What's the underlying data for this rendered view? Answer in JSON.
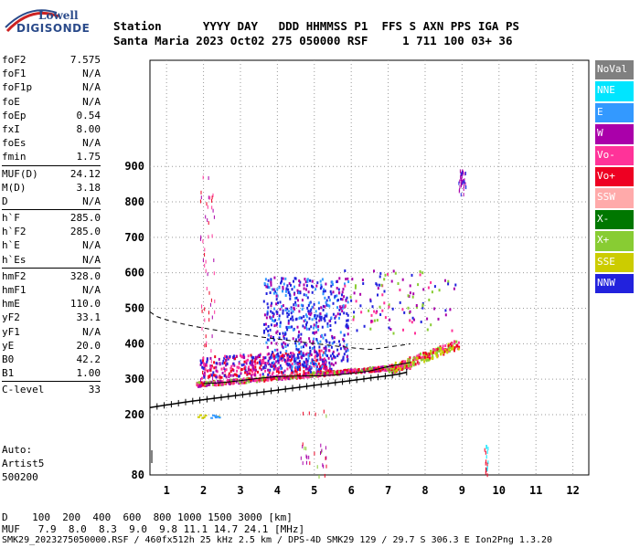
{
  "logo": {
    "line1": "Lowell",
    "line2": "DIGISONDE"
  },
  "header": {
    "row1": "Station      YYYY DAY   DDD HHMMSS P1  FFS S AXN PPS IGA PS",
    "row2": "Santa Maria 2023 Oct02 275 050000 RSF     1 711 100 03+ 36"
  },
  "params": [
    [
      {
        "k": "foF2",
        "v": "7.575"
      },
      {
        "k": "foF1",
        "v": "N/A"
      },
      {
        "k": "foF1p",
        "v": "N/A"
      },
      {
        "k": "foE",
        "v": "N/A"
      },
      {
        "k": "foEp",
        "v": "0.54"
      },
      {
        "k": "fxI",
        "v": "8.00"
      },
      {
        "k": "foEs",
        "v": "N/A"
      },
      {
        "k": "fmin",
        "v": "1.75"
      }
    ],
    [
      {
        "k": "MUF(D)",
        "v": "24.12"
      },
      {
        "k": "M(D)",
        "v": "3.18"
      },
      {
        "k": "D",
        "v": "N/A"
      }
    ],
    [
      {
        "k": "h`F",
        "v": "285.0"
      },
      {
        "k": "h`F2",
        "v": "285.0"
      },
      {
        "k": "h`E",
        "v": "N/A"
      },
      {
        "k": "h`Es",
        "v": "N/A"
      }
    ],
    [
      {
        "k": "hmF2",
        "v": "328.0"
      },
      {
        "k": "hmF1",
        "v": "N/A"
      },
      {
        "k": "hmE",
        "v": "110.0"
      },
      {
        "k": "yF2",
        "v": "33.1"
      },
      {
        "k": "yF1",
        "v": "N/A"
      },
      {
        "k": "yE",
        "v": "20.0"
      },
      {
        "k": "B0",
        "v": "42.2"
      },
      {
        "k": "B1",
        "v": "1.00"
      }
    ],
    [
      {
        "k": "C-level",
        "v": "33"
      }
    ]
  ],
  "auto": {
    "line1": "Auto:",
    "line2": "Artist5",
    "line3": "500200"
  },
  "legend": [
    {
      "label": "NoVal",
      "color": "#808080"
    },
    {
      "label": "NNE",
      "color": "#00e5ff"
    },
    {
      "label": "E",
      "color": "#3399ff"
    },
    {
      "label": "W",
      "color": "#aa00aa"
    },
    {
      "label": "Vo-",
      "color": "#ff3399"
    },
    {
      "label": "Vo+",
      "color": "#ee0022"
    },
    {
      "label": "SSW",
      "color": "#ffaaaa"
    },
    {
      "label": "X-",
      "color": "#007700"
    },
    {
      "label": "X+",
      "color": "#88cc33"
    },
    {
      "label": "SSE",
      "color": "#cccc00"
    },
    {
      "label": "NNW",
      "color": "#2222dd"
    }
  ],
  "axes": {
    "x_ticks": [
      "1",
      "2",
      "3",
      "4",
      "5",
      "6",
      "7",
      "8",
      "9",
      "10",
      "11",
      "12"
    ],
    "y_ticks": [
      "900",
      "800",
      "700",
      "600",
      "500",
      "400",
      "300",
      "200",
      "80"
    ]
  },
  "footer": {
    "d_row": "D    100  200  400  600  800 1000 1500 3000 [km]",
    "muf_row": "MUF   7.9  8.0  8.3  9.0  9.8 11.1 14.7 24.1 [MHz]",
    "info_row": "SMK29_2023275050000.RSF / 460fx512h 25 kHz 2.5 km / DPS-4D SMK29 129 / 29.7 S 306.3 E Ion2Png 1.3.20"
  }
}
